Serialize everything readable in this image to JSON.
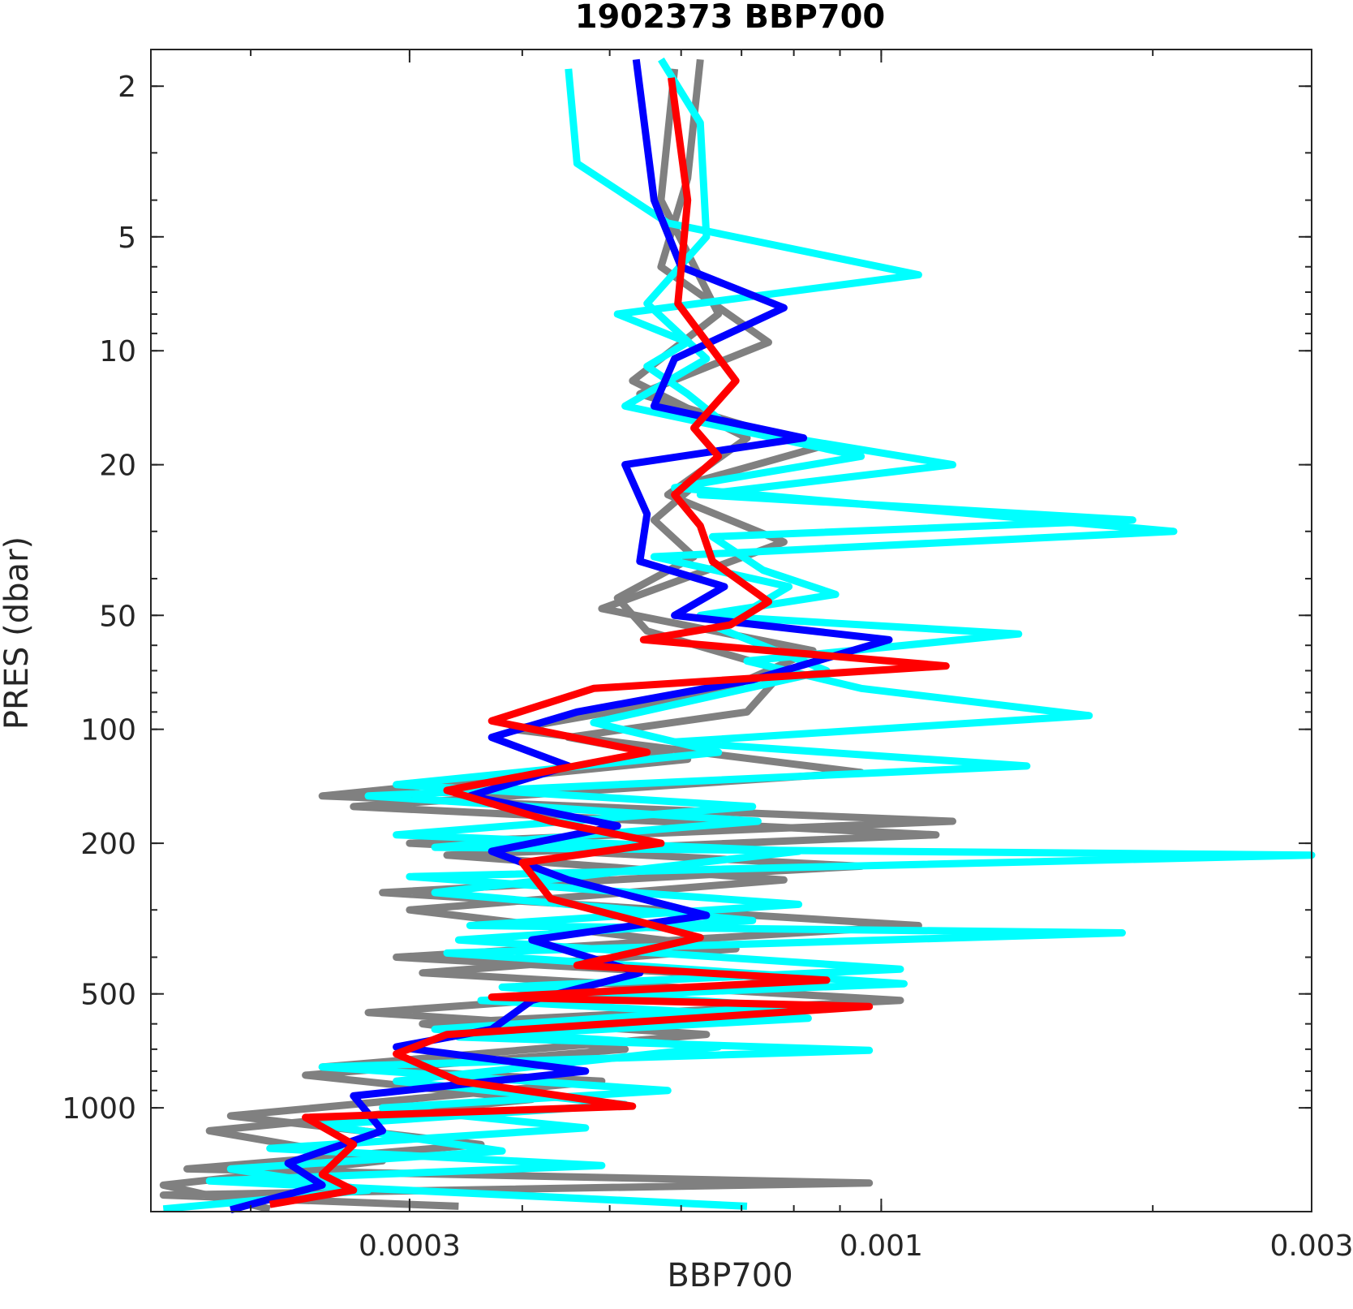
{
  "chart_data": {
    "type": "line",
    "title": "1902373 BBP700",
    "xlabel": "BBP700",
    "ylabel": "PRES (dbar)",
    "x_scale": "log",
    "y_scale": "log",
    "y_reversed": true,
    "xlim": [
      0.000155,
      0.003
    ],
    "ylim": [
      1.6,
      1880
    ],
    "x_ticks": [
      0.0003,
      0.001,
      0.003
    ],
    "x_tick_labels": [
      "0.0003",
      "0.001",
      "0.003"
    ],
    "y_ticks": [
      2,
      5,
      10,
      20,
      50,
      100,
      200,
      500,
      1000
    ],
    "y_tick_labels": [
      "2",
      "5",
      "10",
      "20",
      "50",
      "100",
      "200",
      "500",
      "1000"
    ],
    "grid": false,
    "legend": "none",
    "series": [
      {
        "color": "#808080",
        "points": [
          [
            0.00063,
            1.7
          ],
          [
            0.00061,
            3.5
          ],
          [
            0.00057,
            6.0
          ],
          [
            0.00075,
            9.5
          ],
          [
            0.00054,
            13
          ],
          [
            0.00085,
            18
          ],
          [
            0.00063,
            22
          ],
          [
            0.00056,
            28
          ],
          [
            0.00062,
            35
          ],
          [
            0.00051,
            45
          ],
          [
            0.00055,
            55
          ],
          [
            0.00078,
            70
          ],
          [
            0.00071,
            90
          ],
          [
            0.00045,
            105
          ],
          [
            0.00061,
            120
          ],
          [
            0.00024,
            150
          ],
          [
            0.0012,
            175
          ],
          [
            0.0003,
            200
          ],
          [
            0.00095,
            230
          ],
          [
            0.00028,
            270
          ],
          [
            0.0011,
            330
          ],
          [
            0.00029,
            400
          ],
          [
            0.00085,
            460
          ],
          [
            0.00027,
            560
          ],
          [
            0.00064,
            640
          ],
          [
            0.00024,
            780
          ],
          [
            0.00049,
            850
          ],
          [
            0.00019,
            1050
          ],
          [
            0.00036,
            1250
          ],
          [
            0.00017,
            1450
          ],
          [
            0.00097,
            1580
          ],
          [
            0.00016,
            1700
          ],
          [
            0.00034,
            1820
          ]
        ]
      },
      {
        "color": "#808080",
        "points": [
          [
            0.00059,
            1.8
          ],
          [
            0.00057,
            4.0
          ],
          [
            0.00066,
            8.0
          ],
          [
            0.00053,
            12
          ],
          [
            0.00071,
            17
          ],
          [
            0.00058,
            24
          ],
          [
            0.00078,
            32
          ],
          [
            0.00049,
            48
          ],
          [
            0.00084,
            62
          ],
          [
            0.00066,
            80
          ],
          [
            0.00039,
            100
          ],
          [
            0.00095,
            130
          ],
          [
            0.00026,
            160
          ],
          [
            0.00115,
            190
          ],
          [
            0.00033,
            215
          ],
          [
            0.00078,
            250
          ],
          [
            0.0003,
            300
          ],
          [
            0.00069,
            380
          ],
          [
            0.00031,
            440
          ],
          [
            0.00105,
            520
          ],
          [
            0.00031,
            600
          ],
          [
            0.00052,
            700
          ],
          [
            0.00023,
            820
          ],
          [
            0.00041,
            950
          ],
          [
            0.00018,
            1150
          ],
          [
            0.00028,
            1380
          ],
          [
            0.00016,
            1600
          ],
          [
            0.00021,
            1850
          ]
        ]
      },
      {
        "color": "#00ffff",
        "points": [
          [
            0.00045,
            1.8
          ],
          [
            0.00046,
            3.2
          ],
          [
            0.00058,
            4.6
          ],
          [
            0.0011,
            6.3
          ],
          [
            0.00051,
            8.0
          ],
          [
            0.00061,
            9.5
          ],
          [
            0.00055,
            11
          ],
          [
            0.00061,
            13
          ],
          [
            0.00068,
            16
          ],
          [
            0.0012,
            20
          ],
          [
            0.00063,
            24
          ],
          [
            0.0019,
            28
          ],
          [
            0.00065,
            31
          ],
          [
            0.00074,
            38
          ],
          [
            0.00089,
            44
          ],
          [
            0.00063,
            50
          ],
          [
            0.00142,
            56
          ],
          [
            0.00071,
            66
          ],
          [
            0.00095,
            78
          ],
          [
            0.0017,
            92
          ],
          [
            0.00059,
            108
          ],
          [
            0.00145,
            125
          ],
          [
            0.00027,
            150
          ],
          [
            0.00073,
            175
          ],
          [
            0.00032,
            205
          ],
          [
            0.003,
            215
          ],
          [
            0.0003,
            245
          ],
          [
            0.00081,
            290
          ],
          [
            0.00035,
            330
          ],
          [
            0.00185,
            345
          ],
          [
            0.00033,
            390
          ],
          [
            0.00106,
            470
          ],
          [
            0.00036,
            520
          ],
          [
            0.00083,
            580
          ],
          [
            0.00034,
            650
          ],
          [
            0.00097,
            705
          ],
          [
            0.00024,
            780
          ],
          [
            0.00058,
            900
          ],
          [
            0.00028,
            1000
          ],
          [
            0.00047,
            1130
          ],
          [
            0.00021,
            1280
          ],
          [
            0.00049,
            1420
          ],
          [
            0.00018,
            1560
          ],
          [
            0.00071,
            1820
          ]
        ]
      },
      {
        "color": "#00ffff",
        "points": [
          [
            0.00057,
            1.7
          ],
          [
            0.00063,
            2.5
          ],
          [
            0.00064,
            5.0
          ],
          [
            0.00055,
            7.5
          ],
          [
            0.00064,
            10.5
          ],
          [
            0.00052,
            14
          ],
          [
            0.00095,
            19
          ],
          [
            0.00059,
            23
          ],
          [
            0.00211,
            30
          ],
          [
            0.00056,
            35
          ],
          [
            0.00079,
            42
          ],
          [
            0.00066,
            54
          ],
          [
            0.00087,
            70
          ],
          [
            0.00048,
            96
          ],
          [
            0.00066,
            115
          ],
          [
            0.00029,
            140
          ],
          [
            0.00072,
            160
          ],
          [
            0.00029,
            190
          ],
          [
            0.00081,
            210
          ],
          [
            0.00032,
            270
          ],
          [
            0.00072,
            320
          ],
          [
            0.00034,
            360
          ],
          [
            0.00105,
            430
          ],
          [
            0.00038,
            480
          ],
          [
            0.00078,
            540
          ],
          [
            0.00032,
            620
          ],
          [
            0.00066,
            690
          ],
          [
            0.00029,
            850
          ],
          [
            0.00052,
            980
          ],
          [
            0.00024,
            1110
          ],
          [
            0.00038,
            1300
          ],
          [
            0.00019,
            1450
          ],
          [
            0.00027,
            1650
          ],
          [
            0.00016,
            1850
          ]
        ]
      },
      {
        "color": "#0000ff",
        "points": [
          [
            0.000535,
            1.7
          ],
          [
            0.00056,
            4.0
          ],
          [
            0.0006,
            6.0
          ],
          [
            0.00078,
            7.7
          ],
          [
            0.00059,
            10.5
          ],
          [
            0.00056,
            14
          ],
          [
            0.00082,
            17
          ],
          [
            0.00052,
            20
          ],
          [
            0.00055,
            27
          ],
          [
            0.00054,
            36
          ],
          [
            0.00067,
            42
          ],
          [
            0.00059,
            50
          ],
          [
            0.00102,
            58
          ],
          [
            0.00072,
            74
          ],
          [
            0.00046,
            90
          ],
          [
            0.00037,
            105
          ],
          [
            0.00045,
            125
          ],
          [
            0.00035,
            150
          ],
          [
            0.00051,
            180
          ],
          [
            0.00037,
            210
          ],
          [
            0.00045,
            250
          ],
          [
            0.00064,
            310
          ],
          [
            0.00041,
            360
          ],
          [
            0.00054,
            440
          ],
          [
            0.00041,
            520
          ],
          [
            0.00037,
            620
          ],
          [
            0.00029,
            690
          ],
          [
            0.00047,
            800
          ],
          [
            0.00026,
            930
          ],
          [
            0.00028,
            1150
          ],
          [
            0.00022,
            1400
          ],
          [
            0.00024,
            1600
          ],
          [
            0.00019,
            1860
          ]
        ]
      },
      {
        "color": "#ff0000",
        "points": [
          [
            0.000585,
            1.9
          ],
          [
            0.00061,
            4.0
          ],
          [
            0.000595,
            7.5
          ],
          [
            0.00069,
            12
          ],
          [
            0.00062,
            16
          ],
          [
            0.00066,
            19
          ],
          [
            0.00059,
            24
          ],
          [
            0.00063,
            29
          ],
          [
            0.00065,
            36
          ],
          [
            0.00075,
            46
          ],
          [
            0.00068,
            53
          ],
          [
            0.000545,
            58
          ],
          [
            0.00118,
            68
          ],
          [
            0.00048,
            78
          ],
          [
            0.00037,
            95
          ],
          [
            0.00055,
            115
          ],
          [
            0.00033,
            145
          ],
          [
            0.00043,
            175
          ],
          [
            0.00057,
            200
          ],
          [
            0.0004,
            225
          ],
          [
            0.00043,
            280
          ],
          [
            0.00063,
            355
          ],
          [
            0.00046,
            420
          ],
          [
            0.00087,
            460
          ],
          [
            0.00037,
            510
          ],
          [
            0.00097,
            540
          ],
          [
            0.00033,
            640
          ],
          [
            0.00029,
            720
          ],
          [
            0.00034,
            850
          ],
          [
            0.00053,
            990
          ],
          [
            0.00023,
            1060
          ],
          [
            0.00026,
            1250
          ],
          [
            0.00024,
            1500
          ],
          [
            0.00026,
            1650
          ],
          [
            0.00021,
            1800
          ]
        ]
      }
    ]
  }
}
